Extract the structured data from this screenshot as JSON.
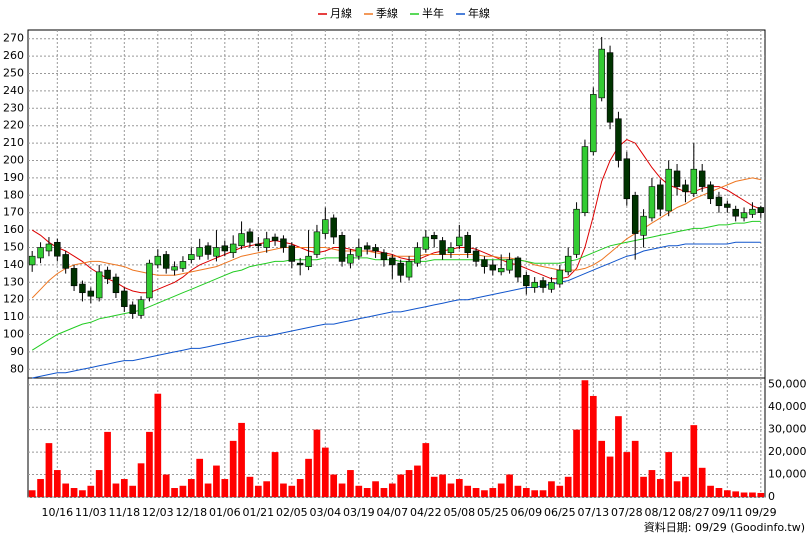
{
  "chart_data": {
    "type": "candlestick",
    "categories": [
      null,
      null,
      null,
      "10/16",
      null,
      null,
      null,
      "11/03",
      null,
      null,
      null,
      "11/18",
      null,
      null,
      null,
      "12/03",
      null,
      null,
      null,
      "12/18",
      null,
      null,
      null,
      "01/06",
      null,
      null,
      null,
      "01/21",
      null,
      null,
      null,
      "02/05",
      null,
      null,
      null,
      "03/04",
      null,
      null,
      null,
      "03/19",
      null,
      null,
      null,
      "04/07",
      null,
      null,
      null,
      "04/22",
      null,
      null,
      null,
      "05/08",
      null,
      null,
      null,
      "05/25",
      null,
      null,
      null,
      "06/09",
      null,
      null,
      null,
      "06/25",
      null,
      null,
      null,
      "07/13",
      null,
      null,
      null,
      "07/28",
      null,
      null,
      null,
      "08/12",
      null,
      null,
      null,
      "08/27",
      null,
      null,
      null,
      "09/11",
      null,
      null,
      null,
      "09/29"
    ],
    "open": [
      140,
      144,
      148,
      153,
      146,
      138,
      129,
      125,
      121,
      137,
      133,
      125,
      117,
      111,
      121,
      140,
      146,
      137,
      138,
      143,
      145,
      151,
      145,
      151,
      147,
      151,
      159,
      152,
      150,
      156,
      155,
      151,
      141,
      139,
      146,
      158,
      167,
      157,
      141,
      145,
      151,
      150,
      147,
      144,
      141,
      133,
      141,
      149,
      157,
      154,
      147,
      151,
      157,
      148,
      143,
      140,
      136,
      137,
      144,
      134,
      127,
      131,
      126,
      129,
      136,
      146,
      170,
      205,
      236,
      262,
      224,
      201,
      180,
      157,
      167,
      186,
      171,
      194,
      186,
      181,
      194,
      186,
      179,
      175,
      172,
      167,
      169,
      173
    ],
    "high": [
      148,
      153,
      156,
      155,
      148,
      140,
      131,
      127,
      140,
      139,
      135,
      127,
      119,
      122,
      143,
      149,
      148,
      142,
      145,
      150,
      155,
      153,
      160,
      154,
      157,
      165,
      161,
      156,
      159,
      158,
      157,
      153,
      144,
      160,
      163,
      173,
      169,
      159,
      149,
      155,
      153,
      152,
      149,
      146,
      143,
      145,
      153,
      160,
      159,
      156,
      153,
      163,
      159,
      150,
      145,
      143,
      146,
      147,
      145,
      136,
      133,
      133,
      133,
      140,
      150,
      176,
      212,
      242,
      271,
      266,
      228,
      205,
      182,
      172,
      190,
      189,
      200,
      198,
      189,
      210,
      198,
      188,
      182,
      177,
      174,
      173,
      176,
      174
    ],
    "low": [
      136,
      141,
      145,
      142,
      135,
      125,
      119,
      118,
      119,
      129,
      121,
      113,
      109,
      109,
      119,
      138,
      135,
      134,
      136,
      141,
      143,
      143,
      142,
      145,
      144,
      149,
      150,
      148,
      147,
      151,
      147,
      138,
      134,
      137,
      144,
      155,
      152,
      139,
      138,
      143,
      146,
      144,
      139,
      132,
      130,
      131,
      139,
      147,
      150,
      143,
      144,
      149,
      144,
      139,
      135,
      134,
      134,
      135,
      130,
      123,
      124,
      124,
      124,
      127,
      134,
      144,
      168,
      203,
      234,
      218,
      196,
      174,
      143,
      150,
      165,
      168,
      168,
      180,
      176,
      179,
      182,
      175,
      170,
      170,
      165,
      165,
      167,
      167
    ],
    "close": [
      145,
      150,
      152,
      145,
      138,
      128,
      124,
      122,
      136,
      132,
      124,
      116,
      112,
      120,
      141,
      145,
      138,
      139,
      142,
      146,
      150,
      146,
      150,
      148,
      152,
      158,
      153,
      151,
      155,
      154,
      150,
      142,
      140,
      145,
      159,
      166,
      156,
      142,
      146,
      150,
      149,
      148,
      143,
      140,
      134,
      142,
      150,
      156,
      155,
      146,
      150,
      156,
      147,
      142,
      139,
      137,
      138,
      143,
      133,
      128,
      130,
      127,
      130,
      137,
      145,
      172,
      208,
      238,
      264,
      222,
      200,
      178,
      158,
      168,
      185,
      172,
      195,
      185,
      182,
      195,
      185,
      178,
      174,
      173,
      168,
      170,
      172,
      170
    ],
    "up_color": "#33cc33",
    "down_color": "#003300",
    "series": [
      {
        "name": "月線",
        "color": "#dd0000",
        "values": [
          160,
          157,
          153,
          150,
          148,
          145,
          142,
          138,
          135,
          132,
          130,
          127,
          125,
          124,
          124,
          126,
          128,
          130,
          133,
          137,
          140,
          142,
          144,
          146,
          148,
          150,
          151,
          152,
          153,
          154,
          153,
          152,
          150,
          148,
          147,
          148,
          150,
          150,
          149,
          148,
          148,
          148,
          147,
          146,
          144,
          143,
          143,
          145,
          147,
          148,
          149,
          150,
          150,
          149,
          147,
          145,
          143,
          141,
          140,
          138,
          136,
          134,
          132,
          132,
          133,
          138,
          150,
          168,
          188,
          200,
          208,
          212,
          210,
          203,
          196,
          190,
          186,
          184,
          182,
          182,
          184,
          185,
          185,
          183,
          180,
          177,
          174,
          172
        ]
      },
      {
        "name": "季線",
        "color": "#ee7722",
        "values": [
          121,
          126,
          131,
          135,
          138,
          140,
          141,
          142,
          142,
          141,
          140,
          139,
          137,
          136,
          135,
          134,
          134,
          134,
          135,
          136,
          137,
          138,
          139,
          141,
          143,
          145,
          146,
          147,
          148,
          149,
          150,
          150,
          150,
          150,
          150,
          150,
          149,
          148,
          148,
          148,
          148,
          147,
          146,
          145,
          145,
          145,
          145,
          146,
          146,
          146,
          146,
          146,
          146,
          146,
          145,
          145,
          144,
          144,
          143,
          142,
          140,
          139,
          138,
          137,
          137,
          137,
          138,
          140,
          143,
          147,
          151,
          155,
          158,
          161,
          164,
          167,
          170,
          173,
          175,
          178,
          180,
          182,
          184,
          186,
          188,
          189,
          190,
          189
        ]
      },
      {
        "name": "半年",
        "color": "#22cc22",
        "values": [
          91,
          94,
          97,
          100,
          102,
          104,
          106,
          107,
          109,
          110,
          111,
          112,
          113,
          114,
          116,
          118,
          120,
          122,
          124,
          126,
          128,
          130,
          132,
          134,
          136,
          137,
          139,
          140,
          141,
          142,
          142,
          143,
          143,
          143,
          143,
          144,
          144,
          144,
          144,
          144,
          144,
          143,
          143,
          143,
          142,
          142,
          142,
          142,
          143,
          143,
          143,
          143,
          143,
          143,
          143,
          143,
          143,
          143,
          143,
          142,
          141,
          141,
          141,
          141,
          142,
          143,
          145,
          147,
          149,
          151,
          152,
          153,
          154,
          155,
          156,
          157,
          158,
          159,
          160,
          161,
          161,
          162,
          163,
          163,
          164,
          164,
          165,
          165
        ]
      },
      {
        "name": "年線",
        "color": "#1155cc",
        "values": [
          75,
          76,
          77,
          78,
          78,
          79,
          80,
          81,
          82,
          83,
          84,
          85,
          85,
          86,
          87,
          88,
          89,
          90,
          91,
          92,
          92,
          93,
          94,
          95,
          96,
          97,
          98,
          99,
          99,
          100,
          101,
          102,
          103,
          104,
          105,
          106,
          106,
          107,
          108,
          109,
          110,
          111,
          112,
          113,
          113,
          114,
          115,
          116,
          117,
          118,
          119,
          120,
          120,
          121,
          122,
          123,
          124,
          125,
          126,
          127,
          127,
          128,
          129,
          130,
          131,
          133,
          135,
          137,
          139,
          141,
          143,
          145,
          146,
          148,
          149,
          150,
          151,
          151,
          152,
          152,
          152,
          152,
          152,
          152,
          153,
          153,
          153,
          153
        ]
      }
    ],
    "ylim": [
      75,
      275
    ],
    "yticks": [
      80,
      90,
      100,
      110,
      120,
      130,
      140,
      150,
      160,
      170,
      180,
      190,
      200,
      210,
      220,
      230,
      240,
      250,
      260,
      270
    ],
    "volume": {
      "color": "#ff0000",
      "values": [
        3000,
        8000,
        24000,
        12000,
        6000,
        4000,
        3000,
        5000,
        12000,
        29000,
        6000,
        8000,
        5000,
        15000,
        29000,
        46000,
        10000,
        4000,
        5000,
        8000,
        17000,
        6000,
        14000,
        8000,
        25000,
        33000,
        9000,
        5000,
        7000,
        20000,
        6000,
        5000,
        8000,
        17000,
        30000,
        22000,
        10000,
        6000,
        12000,
        5000,
        4000,
        7000,
        4000,
        6000,
        10000,
        12000,
        14000,
        24000,
        9000,
        10000,
        6000,
        8000,
        5000,
        4000,
        3000,
        4000,
        6000,
        10000,
        5000,
        4000,
        3000,
        3000,
        7000,
        5000,
        9000,
        30000,
        52000,
        45000,
        25000,
        18000,
        36000,
        20000,
        25000,
        9000,
        12000,
        8000,
        20000,
        7000,
        9000,
        32000,
        13000,
        5000,
        4000,
        3000,
        2500,
        2000,
        2000,
        1800
      ],
      "ylim": [
        0,
        53000
      ],
      "yticks": [
        0,
        {
          "value": 10000,
          "label": "10,000"
        },
        {
          "value": 20000,
          "label": "20,000"
        },
        {
          "value": 30000,
          "label": "30,000"
        },
        {
          "value": 40000,
          "label": "40,000"
        },
        {
          "value": 50000,
          "label": "50,000"
        }
      ]
    },
    "grid": true,
    "legend": "top",
    "footer": "資料日期: 09/29  (Goodinfo.tw)"
  }
}
